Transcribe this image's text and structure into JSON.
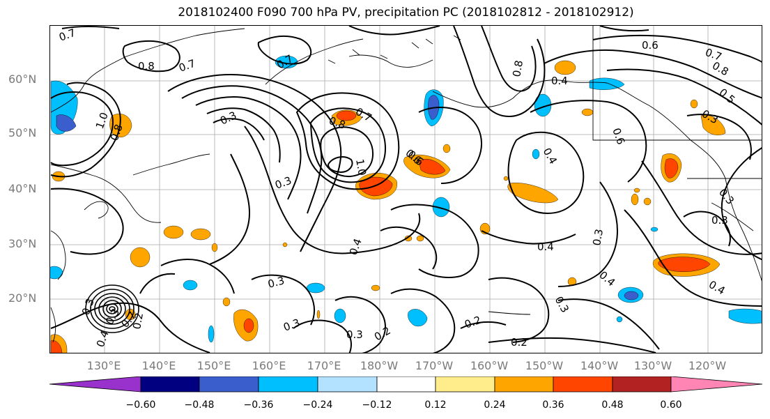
{
  "title": "2018102400 F090 700 hPa PV, precipitation PC (2018102812 - 2018102912)",
  "lat_labels": [
    "60°N",
    "50°N",
    "40°N",
    "30°N",
    "20°N"
  ],
  "lon_labels": [
    "130°E",
    "140°E",
    "150°E",
    "160°E",
    "170°E",
    "180°W",
    "170°W",
    "160°W",
    "150°W",
    "140°W",
    "130°W",
    "120°W"
  ],
  "colorbar": {
    "tick_labels": [
      "−0.60",
      "−0.48",
      "−0.36",
      "−0.24",
      "−0.12",
      "0.12",
      "0.24",
      "0.36",
      "0.48",
      "0.60"
    ],
    "colors": [
      "#9932cc",
      "#000080",
      "#3a5fcd",
      "#00bfff",
      "#b2e2ff",
      "#ffffff",
      "#ffec8b",
      "#ffa500",
      "#ff4500",
      "#b22222",
      "#ff85b4"
    ]
  },
  "contour_labels": [
    "0.7",
    "0.8",
    "0.7",
    "0.7",
    "0.3",
    "1.0",
    "0.8",
    "0.8",
    "1.0",
    "0.3",
    "0.7",
    "0.6",
    "0.8",
    "0.4",
    "0.6",
    "0.7",
    "0.8",
    "0.5",
    "0.3",
    "0.6",
    "0.4",
    "0.4",
    "0.3",
    "0.3",
    "0.3",
    "0.4",
    "0.3",
    "0.4",
    "0.3",
    "0.4",
    "0.3",
    "0.2",
    "0.3",
    "0.2",
    "0.2",
    "0.2",
    "0.3",
    "0.4",
    "0.3",
    "0.6",
    "0.7"
  ]
}
